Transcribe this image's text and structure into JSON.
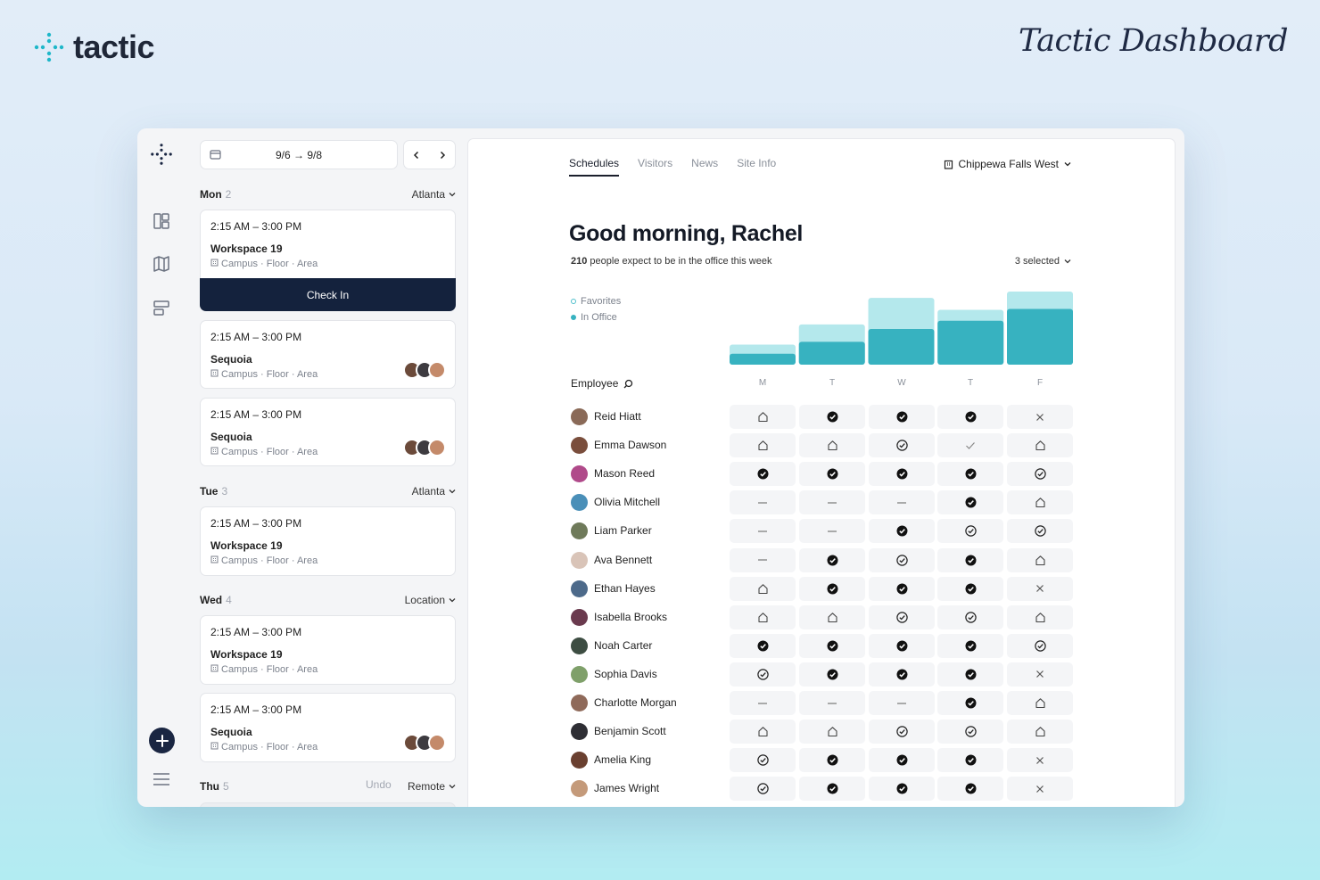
{
  "brand": {
    "name": "tactic",
    "accent": "#1fb7c9"
  },
  "page_heading": "Tactic Dashboard",
  "schedule": {
    "date_range": "9/6 → 9/8",
    "days": [
      {
        "name": "Mon",
        "count": "2",
        "location": "Atlanta"
      },
      {
        "name": "Tue",
        "count": "3",
        "location": "Atlanta"
      },
      {
        "name": "Wed",
        "count": "4",
        "location": "Location"
      },
      {
        "name": "Thu",
        "count": "5",
        "location": "Remote",
        "undo": "Undo"
      }
    ],
    "cards": [
      {
        "time": "2:15 AM – 3:00 PM",
        "title": "Workspace 19",
        "meta": "Campus · Floor · Area",
        "action": "Check In"
      },
      {
        "time": "2:15 AM – 3:00 PM",
        "title": "Sequoia",
        "meta": "Campus · Floor · Area"
      },
      {
        "time": "2:15 AM – 3:00 PM",
        "title": "Sequoia",
        "meta": "Campus · Floor · Area"
      },
      {
        "time": "2:15 AM – 3:00 PM",
        "title": "Workspace 19",
        "meta": "Campus · Floor · Area"
      },
      {
        "time": "2:15 AM – 3:00 PM",
        "title": "Workspace 19",
        "meta": "Campus · Floor · Area"
      },
      {
        "time": "2:15 AM – 3:00 PM",
        "title": "Sequoia",
        "meta": "Campus · Floor · Area"
      }
    ]
  },
  "main": {
    "tabs": [
      "Schedules",
      "Visitors",
      "News",
      "Site Info"
    ],
    "active_tab": "Schedules",
    "site": "Chippewa Falls West",
    "greeting": "Good morning, Rachel",
    "summary_count": "210",
    "summary_text": "people expect to be in the office this week",
    "selector": "3 selected",
    "legend": [
      "Favorites",
      "In Office"
    ],
    "employee_header": "Employee",
    "days": [
      "M",
      "T",
      "W",
      "T",
      "F"
    ]
  },
  "chart_data": {
    "type": "bar",
    "categories": [
      "M",
      "T",
      "W",
      "T",
      "F"
    ],
    "series": [
      {
        "name": "In Office",
        "values": [
          12,
          25,
          39,
          48,
          61
        ]
      },
      {
        "name": "Favorites",
        "values": [
          10,
          19,
          34,
          12,
          19
        ]
      }
    ],
    "colors": {
      "In Office": "#37b2c0",
      "Favorites": "#b4e8ec"
    },
    "stacked": true,
    "ymax": 80
  },
  "employees": [
    {
      "name": "Reid Hiatt",
      "color": "#8a6a58",
      "status": [
        "home",
        "filled",
        "filled",
        "filled",
        "x"
      ]
    },
    {
      "name": "Emma Dawson",
      "color": "#7a4e3c",
      "status": [
        "home",
        "home",
        "outline",
        "check",
        "home"
      ]
    },
    {
      "name": "Mason Reed",
      "color": "#b04a8a",
      "status": [
        "filled",
        "filled",
        "filled",
        "filled",
        "outline"
      ]
    },
    {
      "name": "Olivia Mitchell",
      "color": "#4a8fb8",
      "status": [
        "dash",
        "dash",
        "dash",
        "filled",
        "home"
      ]
    },
    {
      "name": "Liam Parker",
      "color": "#6f7a5a",
      "status": [
        "dash",
        "dash",
        "filled",
        "outline",
        "outline"
      ]
    },
    {
      "name": "Ava Bennett",
      "color": "#d9c4b8",
      "status": [
        "dash",
        "filled",
        "outline",
        "filled",
        "home"
      ]
    },
    {
      "name": "Ethan Hayes",
      "color": "#4d6a8a",
      "status": [
        "home",
        "filled",
        "filled",
        "filled",
        "x"
      ]
    },
    {
      "name": "Isabella Brooks",
      "color": "#6a3a4e",
      "status": [
        "home",
        "home",
        "outline",
        "outline",
        "home"
      ]
    },
    {
      "name": "Noah Carter",
      "color": "#3d4d42",
      "status": [
        "filled",
        "filled",
        "filled",
        "filled",
        "outline"
      ]
    },
    {
      "name": "Sophia Davis",
      "color": "#7fa06a",
      "status": [
        "outline",
        "filled",
        "filled",
        "filled",
        "x"
      ]
    },
    {
      "name": "Charlotte Morgan",
      "color": "#8f6a5a",
      "status": [
        "dash",
        "dash",
        "dash",
        "filled",
        "home"
      ]
    },
    {
      "name": "Benjamin Scott",
      "color": "#2e2e34",
      "status": [
        "home",
        "home",
        "outline",
        "outline",
        "home"
      ]
    },
    {
      "name": "Amelia King",
      "color": "#6a4030",
      "status": [
        "outline",
        "filled",
        "filled",
        "filled",
        "x"
      ]
    },
    {
      "name": "James Wright",
      "color": "#c49a7a",
      "status": [
        "outline",
        "filled",
        "filled",
        "filled",
        "x"
      ]
    }
  ]
}
